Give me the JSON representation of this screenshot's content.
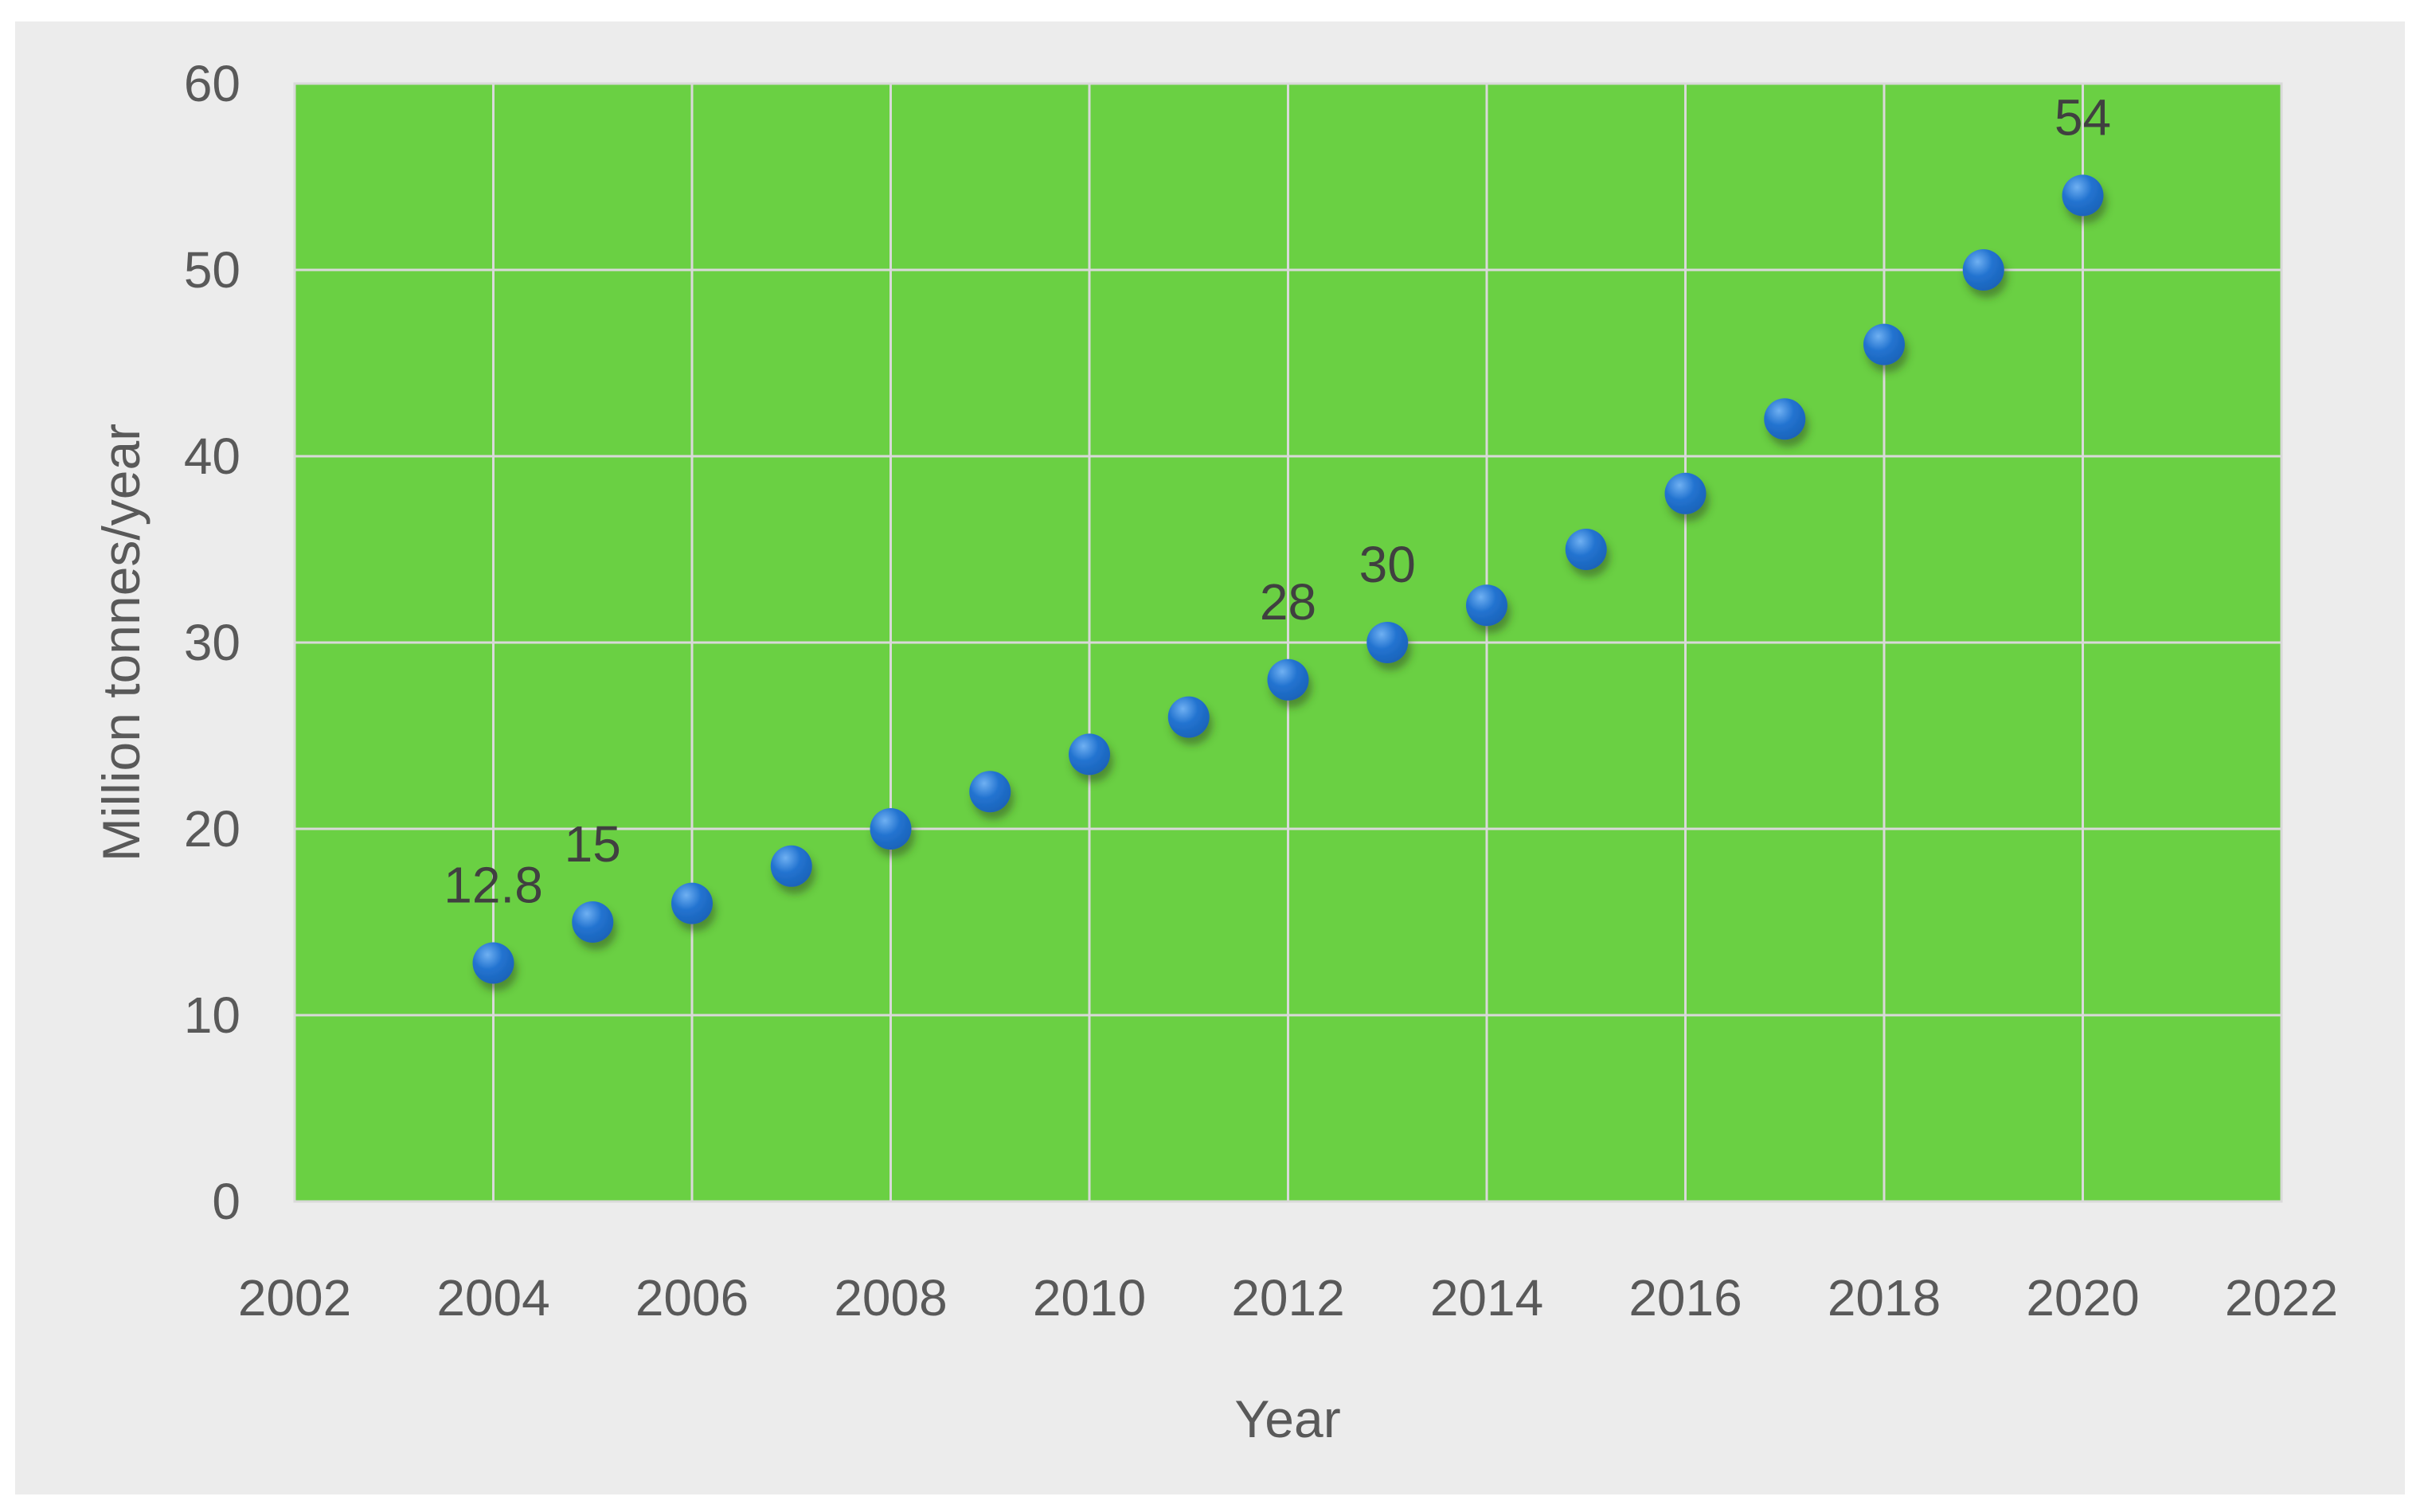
{
  "chart_data": {
    "type": "scatter",
    "title": "",
    "xlabel": "Year",
    "ylabel": "Million tonnes/year",
    "xlim": [
      2002,
      2022
    ],
    "ylim": [
      0,
      60
    ],
    "x_ticks": [
      2002,
      2004,
      2006,
      2008,
      2010,
      2012,
      2014,
      2016,
      2018,
      2020,
      2022
    ],
    "y_ticks": [
      0,
      10,
      20,
      30,
      40,
      50,
      60
    ],
    "grid": true,
    "legend": false,
    "series": [
      {
        "points": [
          {
            "x": 2004,
            "y": 12.8,
            "label": "12.8"
          },
          {
            "x": 2005,
            "y": 15,
            "label": "15"
          },
          {
            "x": 2006,
            "y": 16
          },
          {
            "x": 2007,
            "y": 18
          },
          {
            "x": 2008,
            "y": 20
          },
          {
            "x": 2009,
            "y": 22
          },
          {
            "x": 2010,
            "y": 24
          },
          {
            "x": 2011,
            "y": 26
          },
          {
            "x": 2012,
            "y": 28,
            "label": "28"
          },
          {
            "x": 2013,
            "y": 30,
            "label": "30"
          },
          {
            "x": 2014,
            "y": 32
          },
          {
            "x": 2015,
            "y": 35
          },
          {
            "x": 2016,
            "y": 38
          },
          {
            "x": 2017,
            "y": 42
          },
          {
            "x": 2018,
            "y": 46
          },
          {
            "x": 2019,
            "y": 50
          },
          {
            "x": 2020,
            "y": 54,
            "label": "54"
          }
        ]
      }
    ],
    "colors": {
      "page_bg": "#FFFFFF",
      "chart_bg": "#ECECEC",
      "plot_bg": "#6AD043",
      "gridline": "#D9D9D9",
      "marker": "#2273D0",
      "marker_highlight": "#6FB0F2",
      "marker_edge": "#1A60B5",
      "marker_shadow": "#33451F",
      "tick_text": "#595959",
      "axis_title_text": "#595959",
      "data_label_text": "#404040"
    }
  }
}
